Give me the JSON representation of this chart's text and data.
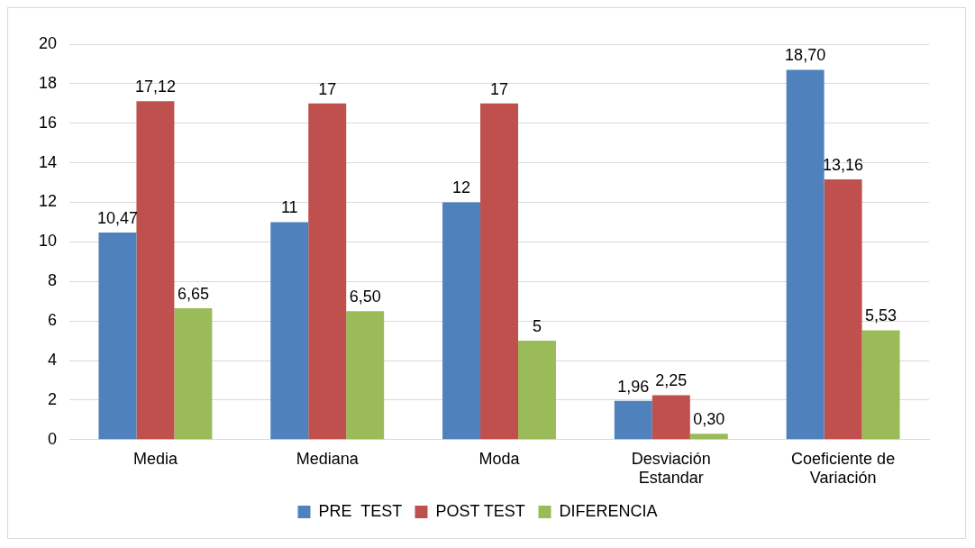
{
  "chart_data": {
    "type": "bar",
    "categories": [
      "Media",
      "Mediana",
      "Moda",
      "Desviación Estandar",
      "Coeficiente de Variación"
    ],
    "series": [
      {
        "name": "PRE  TEST",
        "color": "#4f81bd",
        "values": [
          10.47,
          11,
          12,
          1.96,
          18.7
        ],
        "value_labels": [
          "10,47",
          "11",
          "12",
          "1,96",
          "18,70"
        ]
      },
      {
        "name": "POST TEST",
        "color": "#c0504d",
        "values": [
          17.12,
          17,
          17,
          2.25,
          13.16
        ],
        "value_labels": [
          "17,12",
          "17",
          "17",
          "2,25",
          "13,16"
        ]
      },
      {
        "name": "DIFERENCIA",
        "color": "#9bbb59",
        "values": [
          6.65,
          6.5,
          5,
          0.3,
          5.53
        ],
        "value_labels": [
          "6,65",
          "6,50",
          "5",
          "0,30",
          "5,53"
        ]
      }
    ],
    "ylim": [
      0,
      20
    ],
    "yticks": [
      0,
      2,
      4,
      6,
      8,
      10,
      12,
      14,
      16,
      18,
      20
    ],
    "grid": "y",
    "legend": "bottom"
  }
}
